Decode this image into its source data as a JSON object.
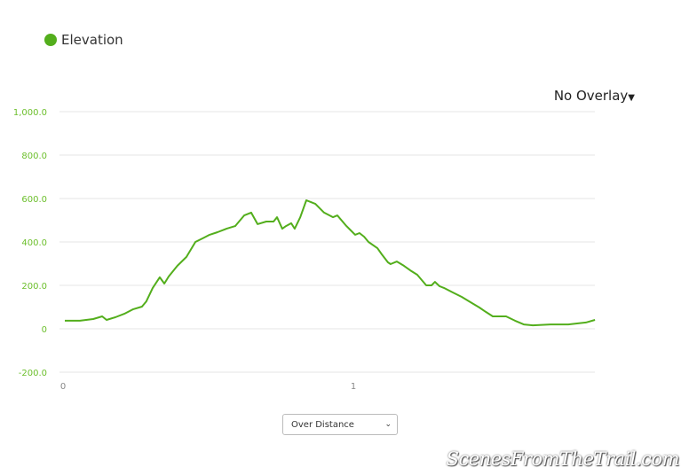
{
  "legend": {
    "label": "Elevation",
    "color": "#53ae1c"
  },
  "overlay": {
    "label": "No Overlay",
    "icon": "caret-down-icon"
  },
  "select": {
    "value": "Over Distance",
    "icon": "chevron-down-icon"
  },
  "watermark": "ScenesFromTheTrail.com",
  "chart_data": {
    "type": "line",
    "title": "",
    "xlabel": "",
    "ylabel": "",
    "ylim": [
      -200,
      1000
    ],
    "xlim": [
      0,
      1.83
    ],
    "yticks": [
      "1,000.0",
      "800.0",
      "600.0",
      "400.0",
      "200.0",
      "0",
      "-200.0"
    ],
    "ytick_values": [
      1000,
      800,
      600,
      400,
      200,
      0,
      -200
    ],
    "xticks": [
      "0",
      "1"
    ],
    "xtick_values": [
      0,
      1
    ],
    "grid": true,
    "series": [
      {
        "name": "Elevation",
        "color": "#53ae1c",
        "x": [
          0.006,
          0.058,
          0.104,
          0.135,
          0.15,
          0.18,
          0.211,
          0.242,
          0.272,
          0.287,
          0.309,
          0.333,
          0.349,
          0.364,
          0.394,
          0.425,
          0.456,
          0.486,
          0.505,
          0.532,
          0.563,
          0.593,
          0.624,
          0.648,
          0.67,
          0.7,
          0.725,
          0.737,
          0.755,
          0.768,
          0.786,
          0.798,
          0.817,
          0.838,
          0.853,
          0.869,
          0.899,
          0.93,
          0.945,
          0.976,
          0.991,
          1.006,
          1.021,
          1.037,
          1.052,
          1.083,
          1.098,
          1.119,
          1.128,
          1.15,
          1.174,
          1.196,
          1.22,
          1.251,
          1.269,
          1.281,
          1.297,
          1.312,
          1.343,
          1.373,
          1.404,
          1.434,
          1.456,
          1.48,
          1.526,
          1.557,
          1.587,
          1.618,
          1.679,
          1.74,
          1.801,
          1.832
        ],
        "y": [
          37,
          37,
          45,
          57,
          41,
          53,
          69,
          90,
          102,
          126,
          188,
          237,
          208,
          241,
          290,
          331,
          400,
          420,
          433,
          445,
          461,
          473,
          522,
          535,
          482,
          494,
          494,
          514,
          461,
          473,
          486,
          461,
          514,
          592,
          584,
          575,
          535,
          514,
          522,
          473,
          453,
          433,
          441,
          424,
          400,
          371,
          343,
          306,
          298,
          310,
          290,
          269,
          249,
          200,
          200,
          216,
          196,
          188,
          167,
          147,
          122,
          98,
          78,
          57,
          57,
          37,
          20,
          16,
          20,
          20,
          29,
          41
        ]
      }
    ]
  }
}
